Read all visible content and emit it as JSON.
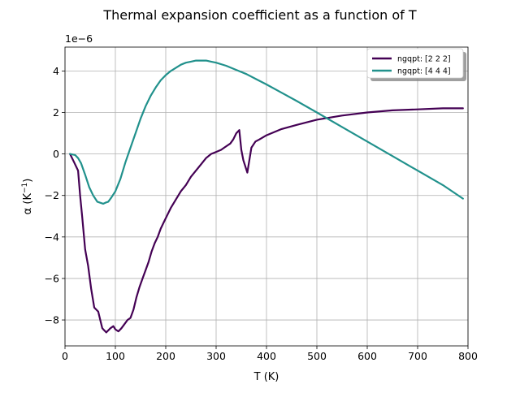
{
  "chart_data": {
    "type": "line",
    "title": "Thermal expansion coefficient as a function of T",
    "xlabel": "T (K)",
    "ylabel_main": "α (K",
    "ylabel_sup": "−1",
    "ylabel_close": ")",
    "offset_text": "1e−6",
    "xlim": [
      0,
      800
    ],
    "ylim": [
      -9.25,
      5.15
    ],
    "xticks": [
      0,
      100,
      200,
      300,
      400,
      500,
      600,
      700,
      800
    ],
    "xtick_labels": [
      "0",
      "100",
      "200",
      "300",
      "400",
      "500",
      "600",
      "700",
      "800"
    ],
    "yticks": [
      -8,
      -6,
      -4,
      -2,
      0,
      2,
      4
    ],
    "ytick_labels": [
      "−8",
      "−6",
      "−4",
      "−2",
      "0",
      "2",
      "4"
    ],
    "grid": true,
    "legend_position": "top-right",
    "series": [
      {
        "name": "ngqpt: [2 2 2]",
        "color": "#440154",
        "x": [
          10,
          18,
          26,
          30,
          34,
          40,
          46,
          52,
          58,
          66,
          70,
          74,
          82,
          90,
          96,
          100,
          106,
          112,
          118,
          124,
          130,
          136,
          142,
          148,
          154,
          160,
          166,
          172,
          178,
          184,
          190,
          196,
          202,
          210,
          220,
          230,
          240,
          250,
          260,
          270,
          280,
          290,
          300,
          310,
          316,
          322,
          328,
          334,
          340,
          346,
          350,
          354,
          362,
          370,
          378,
          386,
          400,
          430,
          460,
          500,
          550,
          600,
          650,
          700,
          750,
          790
        ],
        "y": [
          0.0,
          -0.4,
          -0.8,
          -2.0,
          -3.0,
          -4.6,
          -5.4,
          -6.5,
          -7.4,
          -7.6,
          -8.0,
          -8.4,
          -8.6,
          -8.4,
          -8.3,
          -8.45,
          -8.55,
          -8.4,
          -8.2,
          -8.0,
          -7.9,
          -7.5,
          -6.9,
          -6.4,
          -6.0,
          -5.6,
          -5.2,
          -4.7,
          -4.3,
          -4.0,
          -3.6,
          -3.3,
          -3.0,
          -2.6,
          -2.2,
          -1.8,
          -1.5,
          -1.1,
          -0.8,
          -0.5,
          -0.2,
          0.0,
          0.1,
          0.2,
          0.3,
          0.4,
          0.5,
          0.7,
          1.0,
          1.15,
          0.2,
          -0.3,
          -0.9,
          0.3,
          0.6,
          0.7,
          0.9,
          1.2,
          1.4,
          1.65,
          1.85,
          2.0,
          2.1,
          2.15,
          2.2,
          2.2
        ]
      },
      {
        "name": "ngqpt: [4 4 4]",
        "color": "#21918c",
        "x": [
          10,
          20,
          26,
          32,
          40,
          48,
          56,
          64,
          70,
          76,
          80,
          86,
          92,
          100,
          110,
          120,
          130,
          140,
          150,
          160,
          170,
          180,
          190,
          200,
          210,
          220,
          230,
          240,
          250,
          260,
          270,
          280,
          290,
          300,
          320,
          340,
          360,
          380,
          400,
          430,
          460,
          500,
          550,
          600,
          650,
          700,
          750,
          790
        ],
        "y": [
          0.0,
          -0.05,
          -0.2,
          -0.45,
          -1.0,
          -1.6,
          -2.0,
          -2.3,
          -2.35,
          -2.4,
          -2.35,
          -2.3,
          -2.1,
          -1.8,
          -1.2,
          -0.4,
          0.3,
          1.0,
          1.7,
          2.3,
          2.8,
          3.2,
          3.55,
          3.8,
          4.0,
          4.15,
          4.3,
          4.4,
          4.45,
          4.5,
          4.5,
          4.5,
          4.45,
          4.4,
          4.25,
          4.05,
          3.85,
          3.6,
          3.35,
          2.95,
          2.55,
          2.0,
          1.3,
          0.6,
          -0.1,
          -0.8,
          -1.5,
          -2.15
        ]
      }
    ]
  }
}
